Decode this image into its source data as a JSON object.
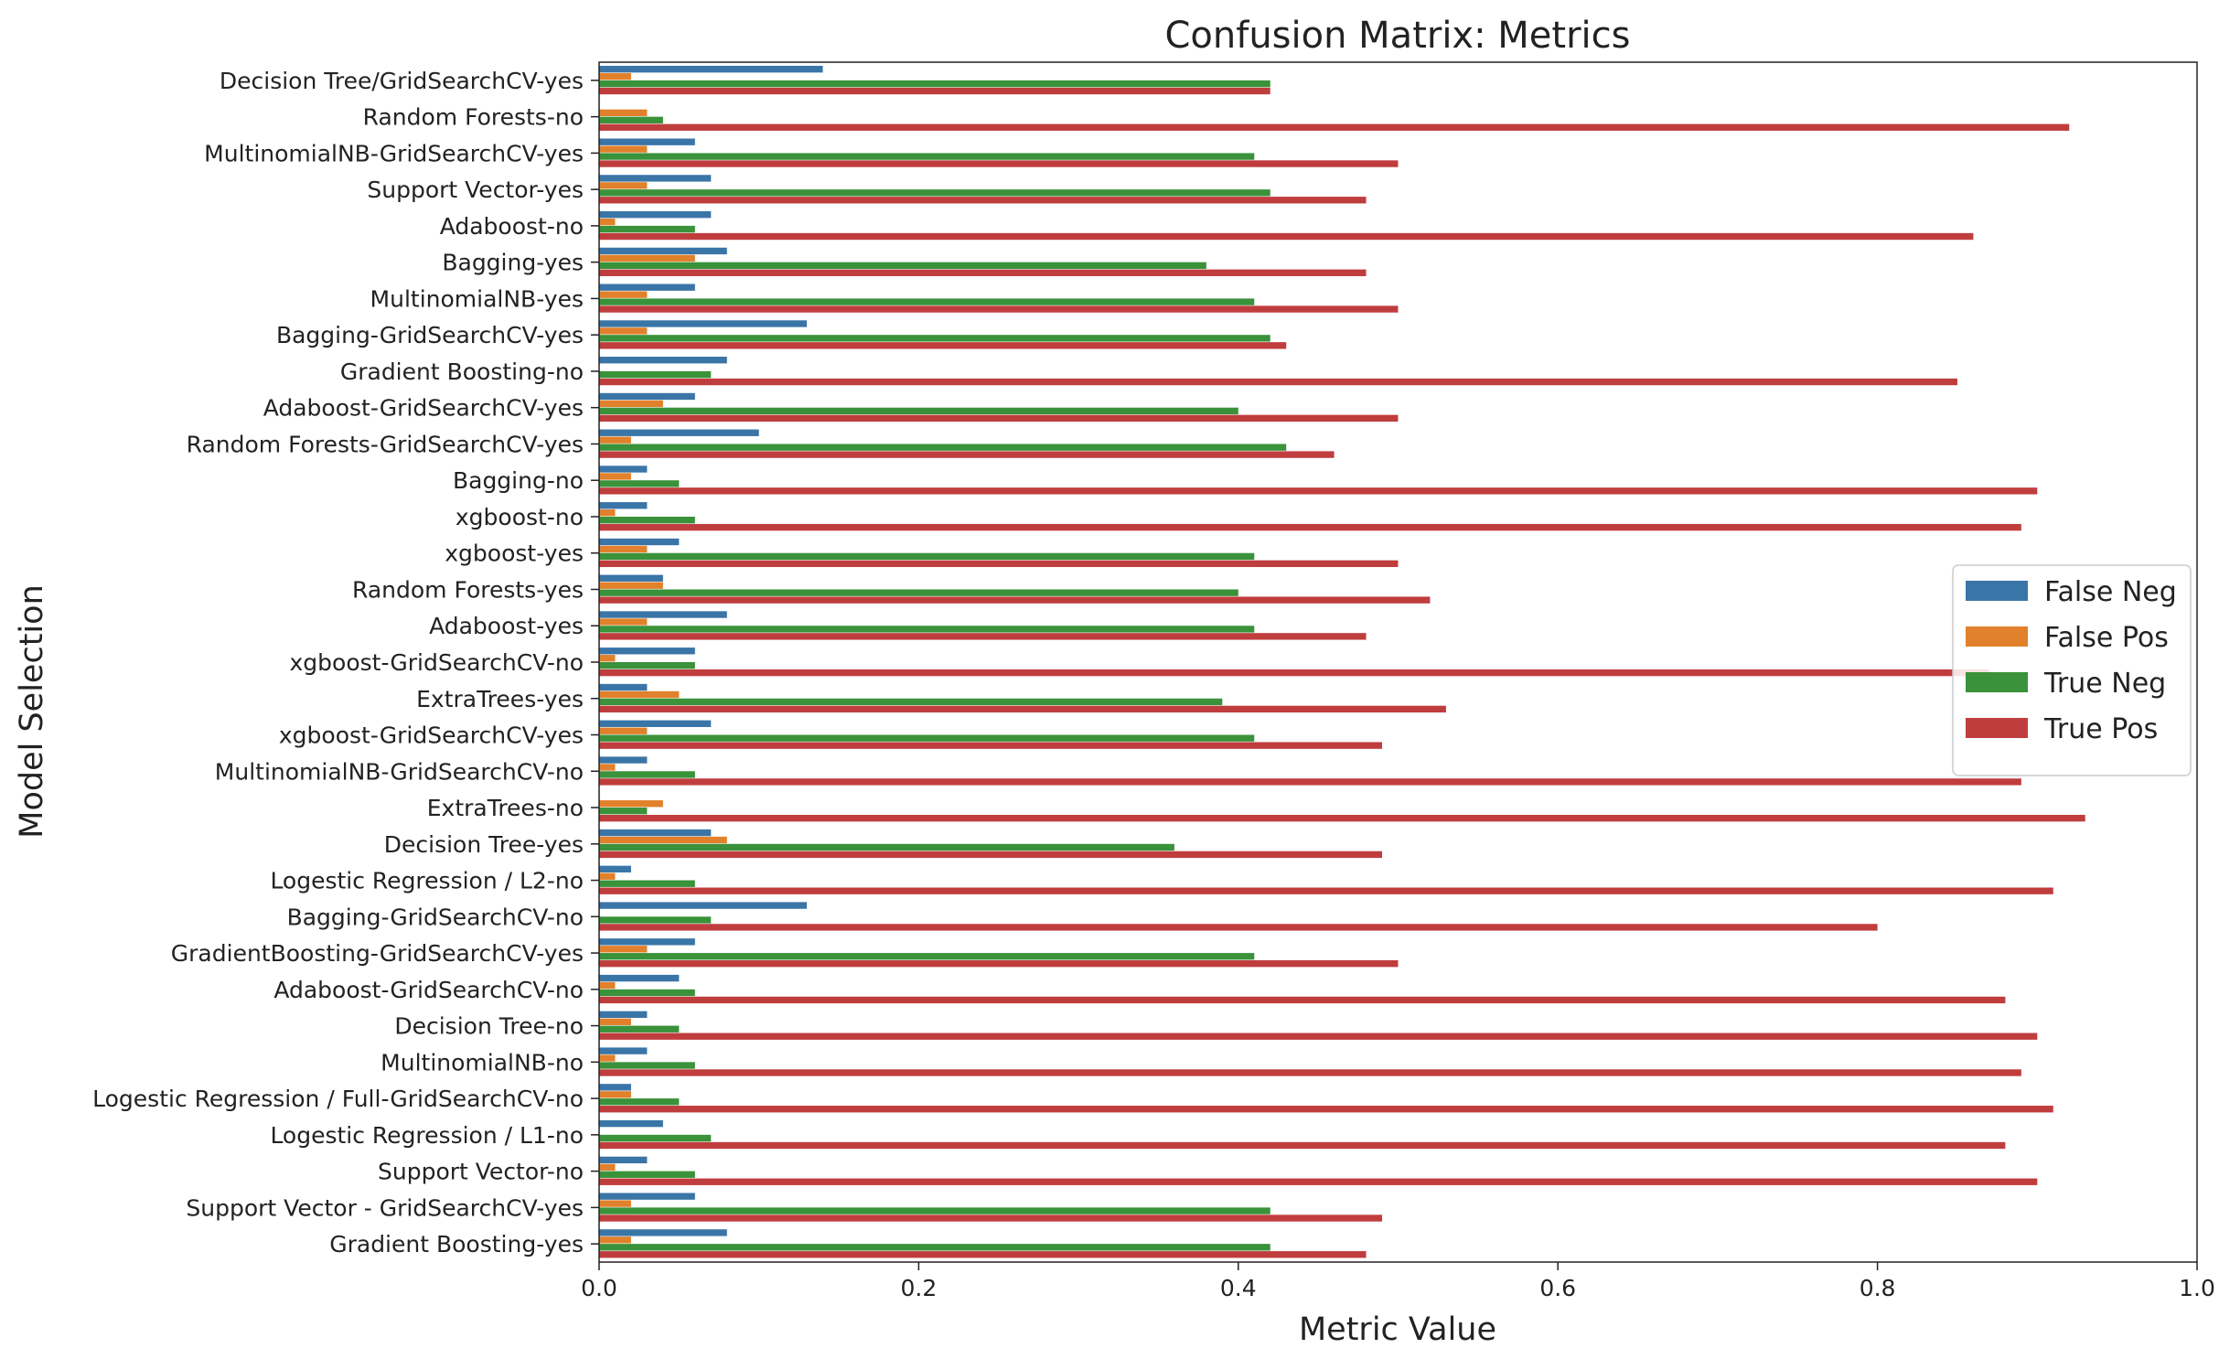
{
  "chart_data": {
    "type": "bar",
    "orientation": "horizontal",
    "title": "Confusion Matrix: Metrics",
    "xlabel": "Metric Value",
    "ylabel": "Model Selection",
    "xlim": [
      0,
      1.0
    ],
    "x_ticks": [
      "0.0",
      "0.2",
      "0.4",
      "0.6",
      "0.8",
      "1.0"
    ],
    "grid": false,
    "legend_position": "center-right",
    "categories": [
      "Decision Tree/GridSearchCV-yes",
      "Random Forests-no",
      "MultinomialNB-GridSearchCV-yes",
      "Support Vector-yes",
      "Adaboost-no",
      "Bagging-yes",
      "MultinomialNB-yes",
      "Bagging-GridSearchCV-yes",
      "Gradient Boosting-no",
      "Adaboost-GridSearchCV-yes",
      "Random Forests-GridSearchCV-yes",
      "Bagging-no",
      "xgboost-no",
      "xgboost-yes",
      "Random Forests-yes",
      "Adaboost-yes",
      "xgboost-GridSearchCV-no",
      "ExtraTrees-yes",
      "xgboost-GridSearchCV-yes",
      "MultinomialNB-GridSearchCV-no",
      "ExtraTrees-no",
      "Decision Tree-yes",
      "Logestic  Regression / L2-no",
      "Bagging-GridSearchCV-no",
      "GradientBoosting-GridSearchCV-yes",
      "Adaboost-GridSearchCV-no",
      "Decision Tree-no",
      "MultinomialNB-no",
      "Logestic  Regression / Full-GridSearchCV-no",
      "Logestic  Regression / L1-no",
      "Support Vector-no",
      "Support Vector - GridSearchCV-yes",
      "Gradient Boosting-yes"
    ],
    "series": [
      {
        "name": "False Neg",
        "color": "#3a75a8",
        "values": [
          0.14,
          0.0,
          0.06,
          0.07,
          0.07,
          0.08,
          0.06,
          0.13,
          0.08,
          0.06,
          0.1,
          0.03,
          0.03,
          0.05,
          0.04,
          0.08,
          0.06,
          0.03,
          0.07,
          0.03,
          0.0,
          0.07,
          0.02,
          0.13,
          0.06,
          0.05,
          0.03,
          0.03,
          0.02,
          0.04,
          0.03,
          0.06,
          0.08
        ]
      },
      {
        "name": "False Pos",
        "color": "#e1812c",
        "values": [
          0.02,
          0.03,
          0.03,
          0.03,
          0.01,
          0.06,
          0.03,
          0.03,
          0.0,
          0.04,
          0.02,
          0.02,
          0.01,
          0.03,
          0.04,
          0.03,
          0.01,
          0.05,
          0.03,
          0.01,
          0.04,
          0.08,
          0.01,
          0.0,
          0.03,
          0.01,
          0.02,
          0.01,
          0.02,
          0.0,
          0.01,
          0.02,
          0.02
        ]
      },
      {
        "name": "True Neg",
        "color": "#3a923a",
        "values": [
          0.42,
          0.04,
          0.41,
          0.42,
          0.06,
          0.38,
          0.41,
          0.42,
          0.07,
          0.4,
          0.43,
          0.05,
          0.06,
          0.41,
          0.4,
          0.41,
          0.06,
          0.39,
          0.41,
          0.06,
          0.03,
          0.36,
          0.06,
          0.07,
          0.41,
          0.06,
          0.05,
          0.06,
          0.05,
          0.07,
          0.06,
          0.42,
          0.42
        ]
      },
      {
        "name": "True Pos",
        "color": "#c03d3e",
        "values": [
          0.42,
          0.92,
          0.5,
          0.48,
          0.86,
          0.48,
          0.5,
          0.43,
          0.85,
          0.5,
          0.46,
          0.9,
          0.89,
          0.5,
          0.52,
          0.48,
          0.87,
          0.53,
          0.49,
          0.89,
          0.93,
          0.49,
          0.91,
          0.8,
          0.5,
          0.88,
          0.9,
          0.89,
          0.91,
          0.88,
          0.9,
          0.49,
          0.48
        ]
      }
    ]
  }
}
